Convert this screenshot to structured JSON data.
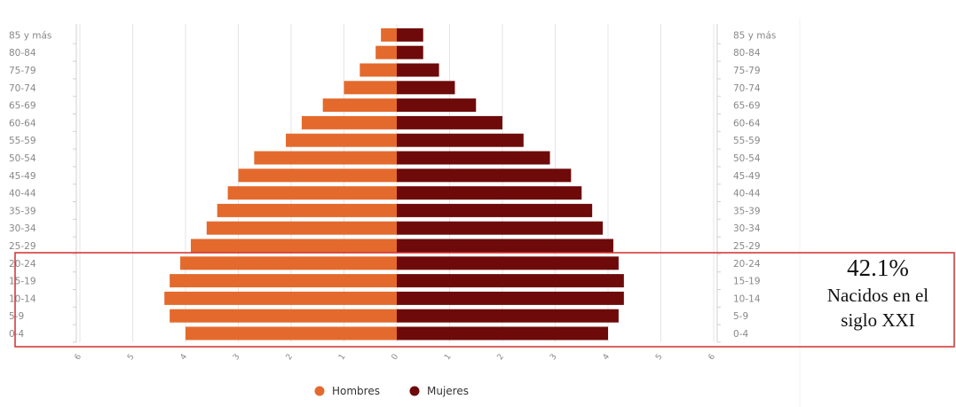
{
  "chart_data": {
    "type": "bar",
    "orientation": "horizontal-pyramid",
    "categories": [
      "0-4",
      "5-9",
      "10-14",
      "15-19",
      "20-24",
      "25-29",
      "30-34",
      "35-39",
      "40-44",
      "45-49",
      "50-54",
      "55-59",
      "60-64",
      "65-69",
      "70-74",
      "75-79",
      "80-84",
      "85 y más"
    ],
    "series": [
      {
        "name": "Hombres",
        "color": "#e36a2c",
        "values": [
          4.0,
          4.3,
          4.4,
          4.3,
          4.1,
          3.9,
          3.6,
          3.4,
          3.2,
          3.0,
          2.7,
          2.1,
          1.8,
          1.4,
          1.0,
          0.7,
          0.4,
          0.3
        ]
      },
      {
        "name": "Mujeres",
        "color": "#6e0a0a",
        "values": [
          4.0,
          4.2,
          4.3,
          4.3,
          4.2,
          4.1,
          3.9,
          3.7,
          3.5,
          3.3,
          2.9,
          2.4,
          2.0,
          1.5,
          1.1,
          0.8,
          0.5,
          0.5
        ]
      }
    ],
    "xlim": [
      -6,
      6
    ],
    "x_ticks": [
      -6,
      -5,
      -4,
      -3,
      -2,
      -1,
      0,
      1,
      2,
      3,
      4,
      5,
      6
    ],
    "x_tick_labels": [
      "6",
      "5",
      "4",
      "3",
      "2",
      "1",
      "0",
      "1",
      "2",
      "3",
      "4",
      "5",
      "6"
    ],
    "legend_position": "bottom-center",
    "grid": true
  },
  "annotation": {
    "percent": "42.1%",
    "line1": "Nacidos en el",
    "line2": "siglo XXI",
    "highlighted_categories": [
      "0-4",
      "5-9",
      "10-14",
      "15-19",
      "20-24"
    ],
    "border_color": "#d32f2f"
  }
}
